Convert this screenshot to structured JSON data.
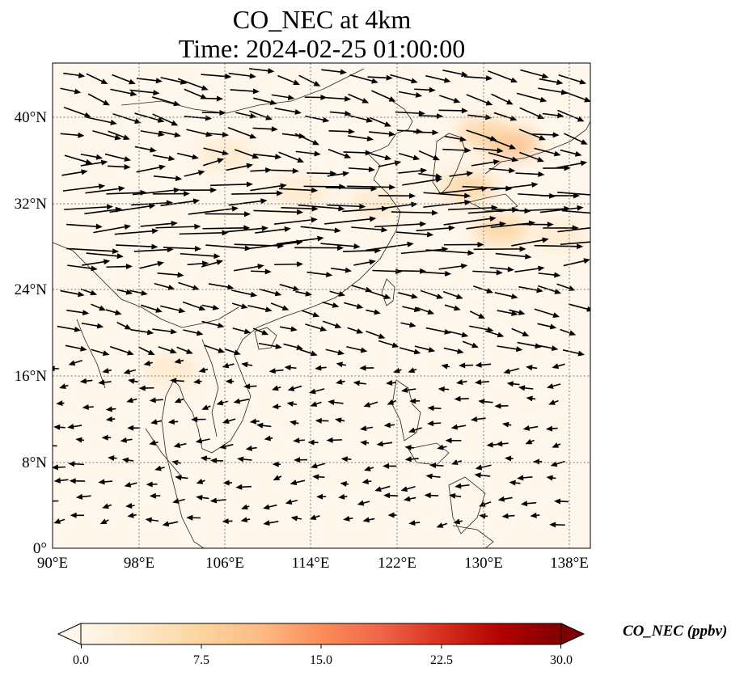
{
  "title": {
    "line1": "CO_NEC at 4km",
    "line2": "Time: 2024-02-25 01:00:00"
  },
  "map": {
    "extent": {
      "lon_min": 90,
      "lon_max": 139.8,
      "lat_min": 0,
      "lat_max": 45
    },
    "lon_ticks": [
      "90°E",
      "98°E",
      "106°E",
      "114°E",
      "122°E",
      "130°E",
      "138°E"
    ],
    "lon_tick_values": [
      90,
      98,
      106,
      114,
      122,
      130,
      138
    ],
    "lat_ticks": [
      "0°",
      "8°N",
      "16°N",
      "24°N",
      "32°N",
      "40°N"
    ],
    "lat_tick_values": [
      0,
      8,
      16,
      24,
      32,
      40
    ],
    "gridlines": true,
    "field": "CO_NEC",
    "hotspots_ppbv": [
      {
        "lon": 132.5,
        "lat": 37.5,
        "value": 11
      },
      {
        "lon": 130.0,
        "lat": 38.5,
        "value": 8
      },
      {
        "lon": 128.5,
        "lat": 33.5,
        "value": 7
      },
      {
        "lon": 131.5,
        "lat": 29.5,
        "value": 6
      },
      {
        "lon": 137.0,
        "lat": 29.0,
        "value": 5
      },
      {
        "lon": 120.0,
        "lat": 32.0,
        "value": 5
      },
      {
        "lon": 106.0,
        "lat": 36.5,
        "value": 4
      },
      {
        "lon": 113.0,
        "lat": 33.0,
        "value": 4
      },
      {
        "lon": 101.0,
        "lat": 16.5,
        "value": 4
      }
    ],
    "wind_vectors": "quiver arrows showing westerly flow north of ~22°N and easterly/northeasterly flow to the south"
  },
  "colorbar": {
    "label": "CO_NEC (ppbv)",
    "ticks": [
      "0.0",
      "7.5",
      "15.0",
      "22.5",
      "30.0"
    ],
    "tick_values": [
      0,
      7.5,
      15,
      22.5,
      30
    ],
    "range": [
      0,
      30
    ],
    "colormap": "OrRd",
    "colors": [
      "#fff7ec",
      "#fee8c8",
      "#fdd49e",
      "#fdbb84",
      "#fc8d59",
      "#ef6548",
      "#d7301f",
      "#b30000",
      "#7f0000"
    ],
    "extend": "both"
  }
}
